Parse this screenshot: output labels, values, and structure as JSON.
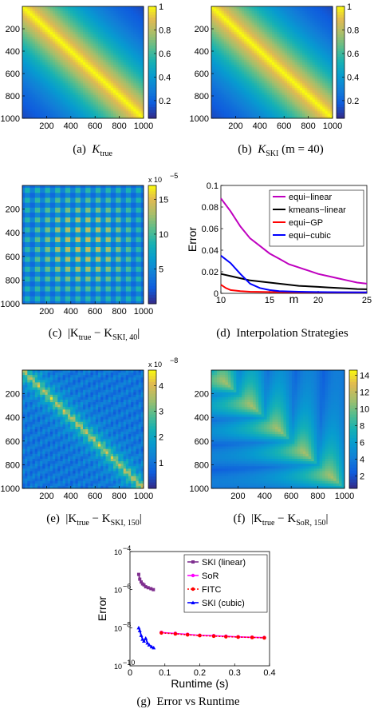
{
  "chart_data": [
    {
      "id": "a",
      "type": "heatmap",
      "caption": {
        "label": "(a)",
        "math": "K",
        "subscript": "true",
        "suffix": ""
      },
      "xticks": [
        "200",
        "400",
        "600",
        "800",
        "1000"
      ],
      "yticks": [
        "200",
        "400",
        "600",
        "800",
        "1000"
      ],
      "colorbar": {
        "ticks": [
          "1",
          "0.8",
          "0.6",
          "0.4",
          "0.2"
        ],
        "range": [
          0.05,
          1
        ]
      }
    },
    {
      "id": "b",
      "type": "heatmap",
      "caption": {
        "label": "(b)",
        "math": "K",
        "subscript": "SKI",
        "suffix": "(m = 40)"
      },
      "xticks": [
        "200",
        "400",
        "600",
        "800",
        "1000"
      ],
      "yticks": [
        "200",
        "400",
        "600",
        "800",
        "1000"
      ],
      "colorbar": {
        "ticks": [
          "1",
          "0.8",
          "0.6",
          "0.4",
          "0.2"
        ],
        "range": [
          0.05,
          1
        ]
      }
    },
    {
      "id": "c",
      "type": "heatmap",
      "caption": {
        "label": "(c)",
        "text": "|K",
        "sub1": "true",
        "mid": " − K",
        "sub2": "SKI, 40",
        "end": "|"
      },
      "xticks": [
        "200",
        "400",
        "600",
        "800",
        "1000"
      ],
      "yticks": [
        "200",
        "400",
        "600",
        "800",
        "1000"
      ],
      "colorbar": {
        "ticks": [
          "15",
          "10",
          "5"
        ],
        "exponent": "x 10",
        "exp_power": "−5",
        "range": [
          0,
          17
        ]
      }
    },
    {
      "id": "d",
      "type": "line",
      "caption": {
        "label": "(d)",
        "text": "Interpolation Strategies"
      },
      "xlabel": "m",
      "ylabel": "Error",
      "xlim": [
        10,
        25
      ],
      "ylim": [
        0,
        0.1
      ],
      "xticks": [
        "10",
        "15",
        "20",
        "25"
      ],
      "yticks": [
        "0",
        "0.02",
        "0.04",
        "0.06",
        "0.08",
        "0.1"
      ],
      "legend_position": "top-right",
      "series": [
        {
          "name": "equi−linear",
          "color": "#bf00bf",
          "x": [
            10,
            11,
            12,
            13,
            14,
            15,
            16,
            17,
            18,
            19,
            20,
            21,
            22,
            23,
            24,
            25
          ],
          "values": [
            0.088,
            0.076,
            0.062,
            0.051,
            0.044,
            0.037,
            0.032,
            0.027,
            0.024,
            0.021,
            0.018,
            0.016,
            0.014,
            0.012,
            0.01,
            0.009
          ]
        },
        {
          "name": "kmeans−linear",
          "color": "#000000",
          "x": [
            10,
            11,
            12,
            13,
            14,
            15,
            16,
            17,
            18,
            19,
            20,
            21,
            22,
            23,
            24,
            25
          ],
          "values": [
            0.018,
            0.016,
            0.014,
            0.012,
            0.011,
            0.01,
            0.009,
            0.008,
            0.007,
            0.0065,
            0.006,
            0.0055,
            0.005,
            0.0045,
            0.004,
            0.0038
          ]
        },
        {
          "name": "equi−GP",
          "color": "#ff0000",
          "x": [
            10,
            10.5,
            11,
            12,
            13,
            15,
            18,
            21,
            25
          ],
          "values": [
            0.008,
            0.005,
            0.003,
            0.002,
            0.0015,
            0.0012,
            0.001,
            0.0009,
            0.0008
          ]
        },
        {
          "name": "equi−cubic",
          "color": "#0000ff",
          "x": [
            10,
            11,
            12,
            13,
            14,
            15,
            16,
            18,
            20,
            22,
            25
          ],
          "values": [
            0.035,
            0.028,
            0.018,
            0.009,
            0.005,
            0.003,
            0.002,
            0.0015,
            0.0012,
            0.001,
            0.0009
          ]
        }
      ]
    },
    {
      "id": "e",
      "type": "heatmap",
      "caption": {
        "label": "(e)",
        "text": "|K",
        "sub1": "true",
        "mid": " − K",
        "sub2": "SKI, 150",
        "end": "|"
      },
      "xticks": [
        "200",
        "400",
        "600",
        "800",
        "1000"
      ],
      "yticks": [
        "200",
        "400",
        "600",
        "800",
        "1000"
      ],
      "colorbar": {
        "ticks": [
          "4",
          "3",
          "2",
          "1"
        ],
        "exponent": "x 10",
        "exp_power": "−8",
        "range": [
          0,
          4.6
        ]
      }
    },
    {
      "id": "f",
      "type": "heatmap",
      "caption": {
        "label": "(f)",
        "text": "|K",
        "sub1": "true",
        "mid": " − K",
        "sub2": "SoR, 150",
        "end": "|"
      },
      "xticks": [
        "200",
        "400",
        "600",
        "800",
        "1000"
      ],
      "yticks": [
        "200",
        "400",
        "600",
        "800",
        "1000"
      ],
      "colorbar": {
        "ticks": [
          "14",
          "12",
          "10",
          "8",
          "6",
          "4",
          "2"
        ],
        "range": [
          0.5,
          14.6
        ]
      }
    },
    {
      "id": "g",
      "type": "line",
      "caption": {
        "label": "(g)",
        "text": "Error vs Runtime"
      },
      "xlabel": "Runtime (s)",
      "ylabel": "Error",
      "xlim": [
        0,
        0.4
      ],
      "ylim_log10": [
        -10,
        -4
      ],
      "yscale": "log",
      "xticks": [
        "0",
        "0.1",
        "0.2",
        "0.3",
        "0.4"
      ],
      "yticks": [
        "10",
        "10",
        "10",
        "10"
      ],
      "ytick_powers": [
        "−4",
        "−6",
        "−8",
        "−10"
      ],
      "legend_position": "top-right",
      "series": [
        {
          "name": "SKI (linear)",
          "color": "#7f2f8f",
          "marker": "square",
          "x": [
            0.025,
            0.028,
            0.032,
            0.036,
            0.04,
            0.045,
            0.052,
            0.06,
            0.067
          ],
          "log10_values": [
            -5.2,
            -5.45,
            -5.6,
            -5.7,
            -5.75,
            -5.85,
            -5.9,
            -5.95,
            -6.0
          ]
        },
        {
          "name": "SoR",
          "color": "#ff00ff",
          "marker": "dot",
          "x": [
            0.09,
            0.13,
            0.165,
            0.2,
            0.24,
            0.275,
            0.31,
            0.35,
            0.385
          ],
          "log10_values": [
            -8.25,
            -8.3,
            -8.35,
            -8.4,
            -8.42,
            -8.45,
            -8.48,
            -8.5,
            -8.52
          ]
        },
        {
          "name": "FITC",
          "color": "#ff0000",
          "marker": "dot",
          "x": [
            0.09,
            0.13,
            0.165,
            0.2,
            0.24,
            0.275,
            0.31,
            0.35,
            0.385
          ],
          "log10_values": [
            -8.27,
            -8.32,
            -8.37,
            -8.41,
            -8.44,
            -8.47,
            -8.49,
            -8.51,
            -8.53
          ]
        },
        {
          "name": "SKI (cubic)",
          "color": "#0000ff",
          "marker": "triangle",
          "x": [
            0.025,
            0.028,
            0.032,
            0.036,
            0.04,
            0.045,
            0.05,
            0.055,
            0.062,
            0.068
          ],
          "log10_values": [
            -8.0,
            -8.15,
            -8.4,
            -8.6,
            -8.7,
            -8.55,
            -8.8,
            -8.9,
            -9.0,
            -9.05
          ]
        }
      ]
    }
  ]
}
